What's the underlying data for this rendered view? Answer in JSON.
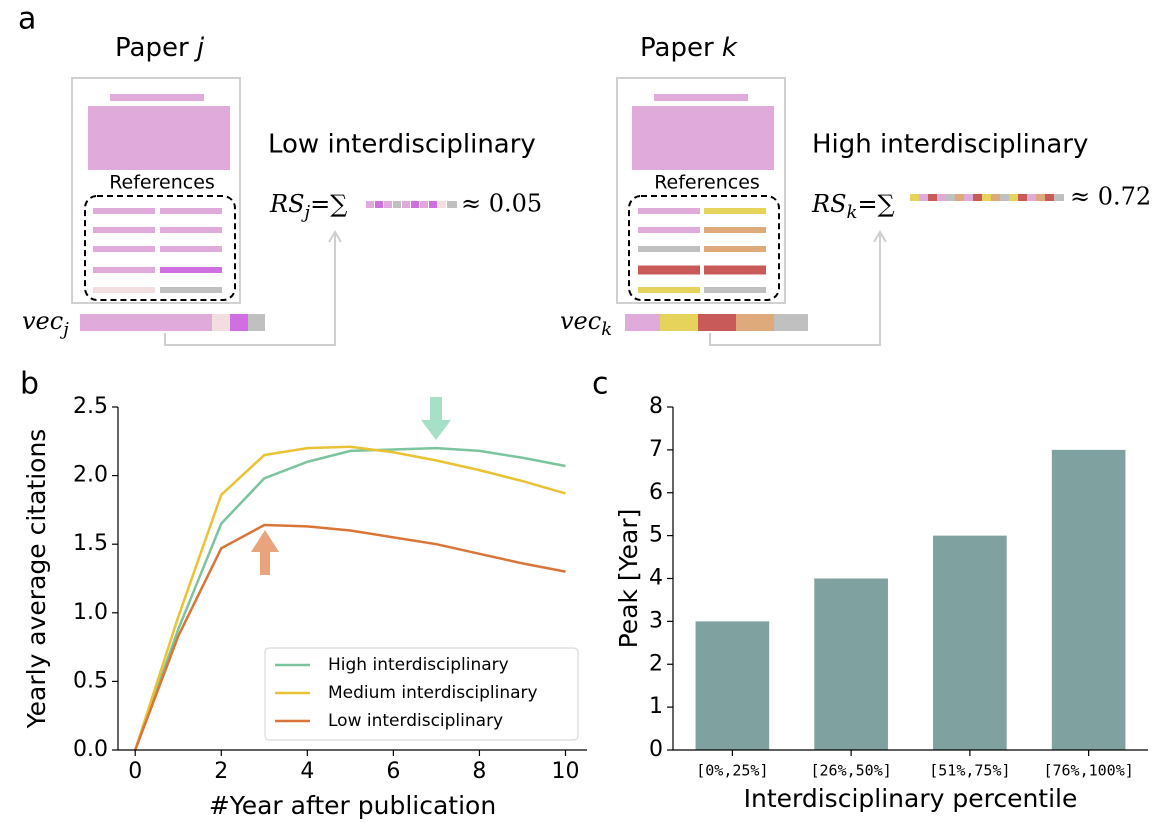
{
  "panel_a": {
    "label": "a",
    "papers": [
      {
        "title": "Paper",
        "id": "j",
        "references": "References",
        "level": "Low interdisciplinary",
        "score_symbol": "RS",
        "vec_symbol": "vec",
        "equals": "=",
        "sum": "∑",
        "approx": "≈ 0.05"
      },
      {
        "title": "Paper",
        "id": "k",
        "references": "References",
        "level": "High interdisciplinary",
        "score_symbol": "RS",
        "vec_symbol": "vec",
        "equals": "=",
        "sum": "∑",
        "approx": "≈ 0.72"
      }
    ]
  },
  "chart_data": [
    {
      "type": "line",
      "label": "b",
      "xlabel": "#Year after publication",
      "ylabel": "Yearly average citations",
      "x": [
        0,
        1,
        2,
        3,
        4,
        5,
        6,
        7,
        8,
        9,
        10
      ],
      "series": [
        {
          "name": "High interdisciplinary",
          "color": "#7cc49e",
          "values": [
            0,
            0.88,
            1.65,
            1.98,
            2.1,
            2.18,
            2.19,
            2.2,
            2.18,
            2.13,
            2.07
          ]
        },
        {
          "name": "Medium interdisciplinary",
          "color": "#eac234",
          "values": [
            0,
            0.97,
            1.86,
            2.15,
            2.2,
            2.21,
            2.17,
            2.11,
            2.04,
            1.96,
            1.87
          ]
        },
        {
          "name": "Low interdisciplinary",
          "color": "#d97538",
          "values": [
            0,
            0.83,
            1.47,
            1.64,
            1.63,
            1.6,
            1.55,
            1.5,
            1.43,
            1.36,
            1.3
          ]
        }
      ],
      "xlim": [
        -0.4,
        10.5
      ],
      "xticks": [
        0,
        2,
        4,
        6,
        8,
        10
      ],
      "ylim": [
        0,
        2.5
      ],
      "yticks": [
        {
          "value": 0,
          "label": "0.0"
        },
        0.5,
        {
          "value": 1,
          "label": "1.0"
        },
        1.5,
        {
          "value": 2,
          "label": "2.0"
        },
        2.5
      ],
      "legend": "lower right"
    },
    {
      "type": "bar",
      "label": "c",
      "xlabel": "Interdisciplinary percentile",
      "ylabel": "Peak [Year]",
      "categories": [
        "[0%,25%]",
        "[26%,50%]",
        "[51%,75%]",
        "[76%,100%]"
      ],
      "values": [
        3,
        4,
        5,
        7
      ],
      "color": "#7fa1a0",
      "ylim": [
        0,
        8
      ],
      "yticks": [
        0,
        1,
        2,
        3,
        4,
        5,
        6,
        7,
        8
      ]
    }
  ]
}
